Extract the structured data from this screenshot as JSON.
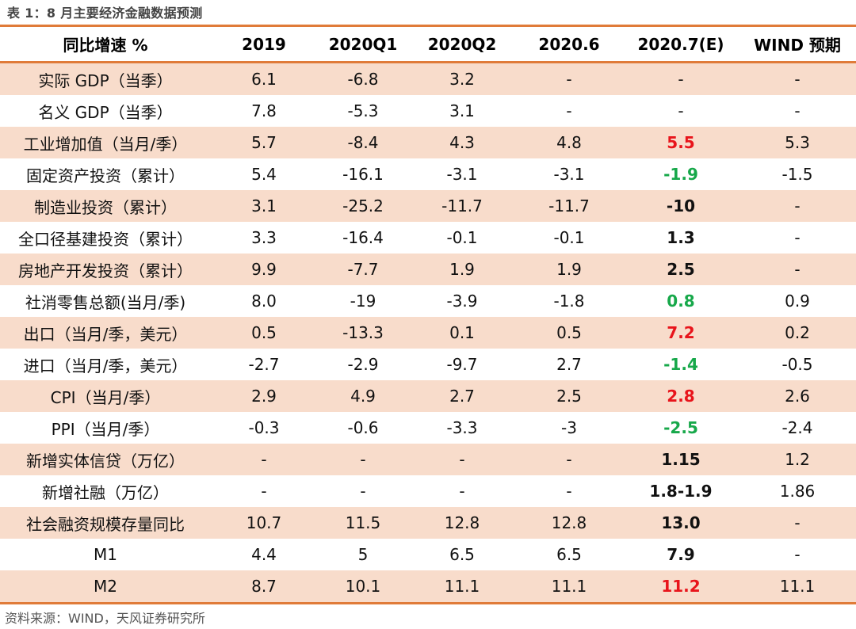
{
  "caption": "表 1：8 月主要经济金融数据预测",
  "colors": {
    "accent_border": "#e07b39",
    "shaded_row": "#f8dccb",
    "highlight_up": "#e8141b",
    "highlight_down": "#17a84a"
  },
  "table": {
    "headers": [
      "同比增速 %",
      "2019",
      "2020Q1",
      "2020Q2",
      "2020.6",
      "2020.7(E)",
      "WIND 预期"
    ],
    "rows": [
      {
        "label": "实际 GDP（当季）",
        "values": [
          "6.1",
          "-6.8",
          "3.2",
          "-",
          "-",
          "-"
        ],
        "forecast_style": "normal"
      },
      {
        "label": "名义 GDP（当季）",
        "values": [
          "7.8",
          "-5.3",
          "3.1",
          "-",
          "-",
          "-"
        ],
        "forecast_style": "normal"
      },
      {
        "label": "工业增加值（当月/季）",
        "values": [
          "5.7",
          "-8.4",
          "4.3",
          "4.8",
          "5.5",
          "5.3"
        ],
        "forecast_style": "red"
      },
      {
        "label": "固定资产投资（累计）",
        "values": [
          "5.4",
          "-16.1",
          "-3.1",
          "-3.1",
          "-1.9",
          "-1.5"
        ],
        "forecast_style": "green"
      },
      {
        "label": "制造业投资（累计）",
        "values": [
          "3.1",
          "-25.2",
          "-11.7",
          "-11.7",
          "-10",
          "-"
        ],
        "forecast_style": "bold"
      },
      {
        "label": "全口径基建投资（累计）",
        "values": [
          "3.3",
          "-16.4",
          "-0.1",
          "-0.1",
          "1.3",
          "-"
        ],
        "forecast_style": "bold"
      },
      {
        "label": "房地产开发投资（累计）",
        "values": [
          "9.9",
          "-7.7",
          "1.9",
          "1.9",
          "2.5",
          "-"
        ],
        "forecast_style": "bold"
      },
      {
        "label": "社消零售总额(当月/季)",
        "values": [
          "8.0",
          "-19",
          "-3.9",
          "-1.8",
          "0.8",
          "0.9"
        ],
        "forecast_style": "green"
      },
      {
        "label": "出口（当月/季，美元）",
        "values": [
          "0.5",
          "-13.3",
          "0.1",
          "0.5",
          "7.2",
          "0.2"
        ],
        "forecast_style": "red"
      },
      {
        "label": "进口（当月/季，美元）",
        "values": [
          "-2.7",
          "-2.9",
          "-9.7",
          "2.7",
          "-1.4",
          "-0.5"
        ],
        "forecast_style": "green"
      },
      {
        "label": "CPI（当月/季）",
        "values": [
          "2.9",
          "4.9",
          "2.7",
          "2.5",
          "2.8",
          "2.6"
        ],
        "forecast_style": "red"
      },
      {
        "label": "PPI（当月/季）",
        "values": [
          "-0.3",
          "-0.6",
          "-3.3",
          "-3",
          "-2.5",
          "-2.4"
        ],
        "forecast_style": "green"
      },
      {
        "label": "新增实体信贷（万亿）",
        "values": [
          "-",
          "-",
          "-",
          "-",
          "1.15",
          "1.2"
        ],
        "forecast_style": "bold"
      },
      {
        "label": "新增社融（万亿）",
        "values": [
          "-",
          "-",
          "-",
          "-",
          "1.8-1.9",
          "1.86"
        ],
        "forecast_style": "bold"
      },
      {
        "label": "社会融资规模存量同比",
        "values": [
          "10.7",
          "11.5",
          "12.8",
          "12.8",
          "13.0",
          "-"
        ],
        "forecast_style": "bold"
      },
      {
        "label": "M1",
        "values": [
          "4.4",
          "5",
          "6.5",
          "6.5",
          "7.9",
          "-"
        ],
        "forecast_style": "bold"
      },
      {
        "label": "M2",
        "values": [
          "8.7",
          "10.1",
          "11.1",
          "11.1",
          "11.2",
          "11.1"
        ],
        "forecast_style": "red"
      }
    ]
  },
  "source": "资料来源：WIND，天风证券研究所"
}
